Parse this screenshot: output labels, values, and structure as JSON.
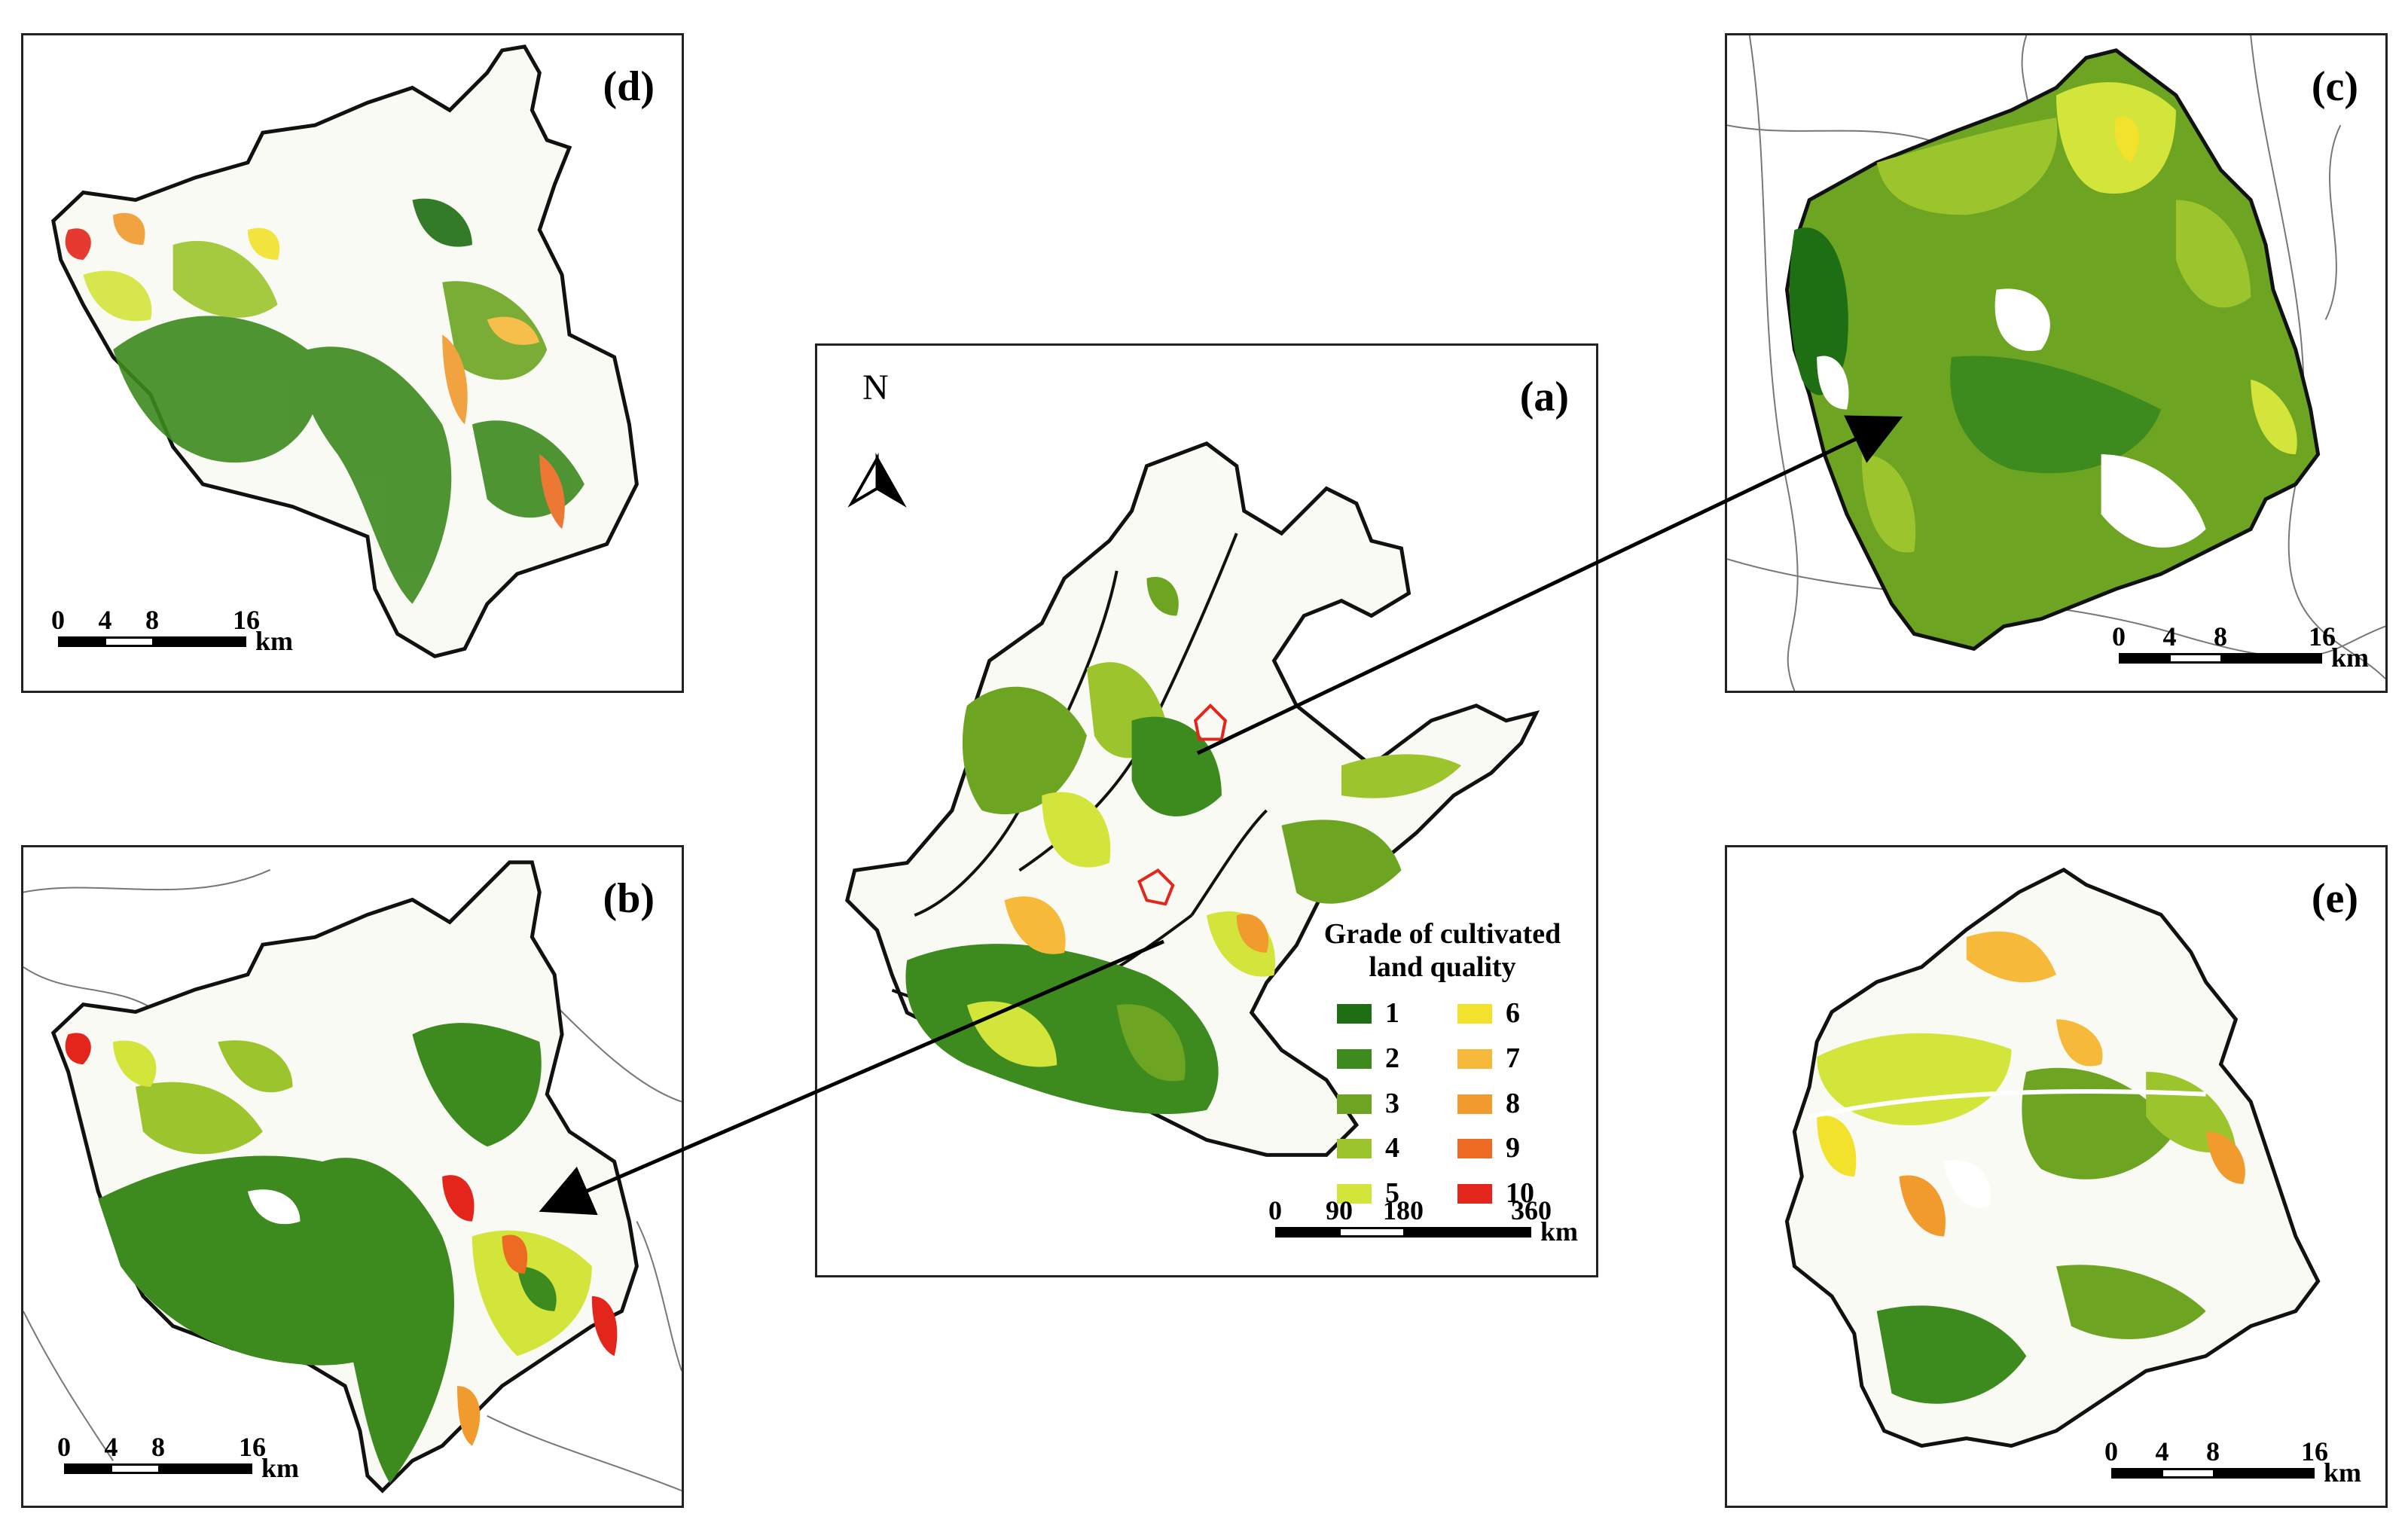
{
  "panels": {
    "a": {
      "label": "(a)"
    },
    "b": {
      "label": "(b)"
    },
    "c": {
      "label": "(c)"
    },
    "d": {
      "label": "(d)"
    },
    "e": {
      "label": "(e)"
    }
  },
  "north": {
    "label": "N"
  },
  "legend": {
    "title_line1": "Grade of cultivated",
    "title_line2": "land quality",
    "grades": [
      {
        "grade": "1",
        "color": "#1e6e14"
      },
      {
        "grade": "2",
        "color": "#3d8a1f"
      },
      {
        "grade": "3",
        "color": "#6da522"
      },
      {
        "grade": "4",
        "color": "#9cc42c"
      },
      {
        "grade": "5",
        "color": "#d3e43a"
      },
      {
        "grade": "6",
        "color": "#f2e22c"
      },
      {
        "grade": "7",
        "color": "#f6b93a"
      },
      {
        "grade": "8",
        "color": "#f19a2e"
      },
      {
        "grade": "9",
        "color": "#ec6a21"
      },
      {
        "grade": "10",
        "color": "#e4251b"
      }
    ]
  },
  "scalebars": {
    "a": {
      "ticks": [
        "0",
        "90",
        "180",
        "360"
      ],
      "unit": "km"
    },
    "local": {
      "ticks": [
        "0",
        "4",
        "8",
        "16"
      ],
      "unit": "km"
    }
  }
}
